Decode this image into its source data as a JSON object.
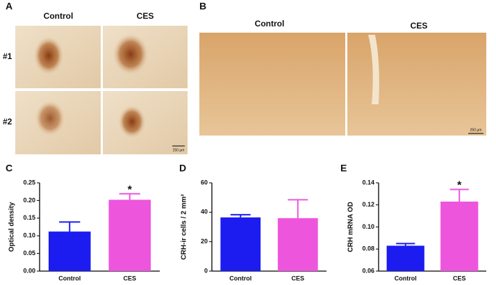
{
  "panels": {
    "a": {
      "label": "A",
      "columns": [
        "Control",
        "CES"
      ],
      "rows": [
        "#1",
        "#2"
      ],
      "scale": "250 µm"
    },
    "b": {
      "label": "B",
      "columns": [
        "Control",
        "CES"
      ],
      "scale": "250 µm"
    }
  },
  "chart_data": [
    {
      "type": "bar",
      "panel_label": "C",
      "ylabel": "Optical density",
      "categories": [
        "Control",
        "CES"
      ],
      "values": [
        0.112,
        0.202
      ],
      "errors": [
        0.027,
        0.017
      ],
      "colors": [
        "#1c1cf0",
        "#ee55dd"
      ],
      "significance": [
        null,
        "*"
      ],
      "ylim": [
        0,
        0.25
      ],
      "yticks": [
        {
          "value": 0,
          "label": "0.00"
        },
        {
          "value": 0.05,
          "label": "0.05"
        },
        {
          "value": 0.1,
          "label": "0.10"
        },
        {
          "value": 0.15,
          "label": "0.15"
        },
        {
          "value": 0.2,
          "label": "0.20"
        },
        {
          "value": 0.25,
          "label": "0.25"
        }
      ]
    },
    {
      "type": "bar",
      "panel_label": "D",
      "ylabel": "CRH-ir cells / 2 mm²",
      "categories": [
        "Control",
        "CES"
      ],
      "values": [
        36.5,
        36
      ],
      "errors": [
        1.8,
        12.5
      ],
      "colors": [
        "#1c1cf0",
        "#ee55dd"
      ],
      "ylim": [
        0,
        60
      ],
      "yticks": [
        0,
        20,
        40,
        60
      ]
    },
    {
      "type": "bar",
      "panel_label": "E",
      "ylabel": "CRH mRNA OD",
      "categories": [
        "Control",
        "CES"
      ],
      "values": [
        0.083,
        0.123
      ],
      "errors": [
        0.002,
        0.011
      ],
      "colors": [
        "#1c1cf0",
        "#ee55dd"
      ],
      "significance": [
        null,
        "*"
      ],
      "ylim": [
        0.06,
        0.14
      ],
      "yticks": [
        {
          "value": 0.06,
          "label": "0.06"
        },
        {
          "value": 0.08,
          "label": "0.08"
        },
        {
          "value": 0.1,
          "label": "0.10"
        },
        {
          "value": 0.12,
          "label": "0.12"
        },
        {
          "value": 0.14,
          "label": "0.14"
        }
      ]
    }
  ]
}
